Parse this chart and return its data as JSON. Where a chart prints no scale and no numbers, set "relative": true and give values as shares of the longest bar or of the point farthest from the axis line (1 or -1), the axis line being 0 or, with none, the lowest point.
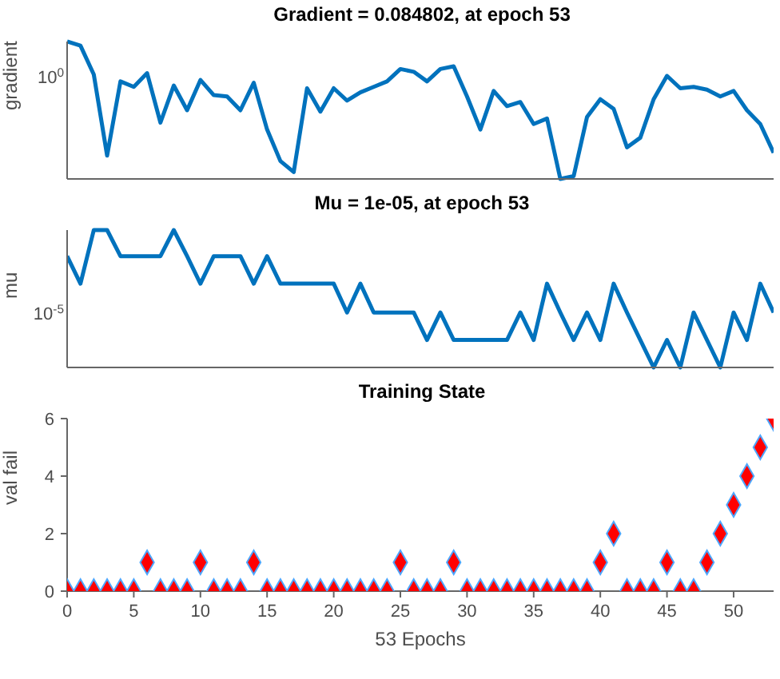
{
  "chart_data": [
    {
      "type": "line",
      "title": "Gradient = 0.084802, at epoch 53",
      "ylabel": "gradient",
      "x": [
        0,
        1,
        2,
        3,
        4,
        5,
        6,
        7,
        8,
        9,
        10,
        11,
        12,
        13,
        14,
        15,
        16,
        17,
        18,
        19,
        20,
        21,
        22,
        23,
        24,
        25,
        26,
        27,
        28,
        29,
        30,
        31,
        32,
        33,
        34,
        35,
        36,
        37,
        38,
        39,
        40,
        41,
        42,
        43,
        44,
        45,
        46,
        47,
        48,
        49,
        50,
        51,
        52,
        53
      ],
      "series": [
        {
          "color": "#0072bd",
          "values": [
            1,
            0.97,
            0.76,
            0.17,
            0.71,
            0.67,
            0.77,
            0.41,
            0.68,
            0.5,
            0.72,
            0.61,
            0.6,
            0.5,
            0.7,
            0.36,
            0.13,
            0.05,
            0.66,
            0.49,
            0.66,
            0.57,
            0.63,
            0.67,
            0.71,
            0.8,
            0.78,
            0.71,
            0.8,
            0.82,
            0.6,
            0.36,
            0.64,
            0.53,
            0.56,
            0.4,
            0.44,
            0,
            0.02,
            0.45,
            0.58,
            0.51,
            0.23,
            0.3,
            0.58,
            0.75,
            0.66,
            0.67,
            0.65,
            0.6,
            0.64,
            0.5,
            0.4,
            0.19
          ]
        }
      ],
      "relative": true,
      "annotations": [
        "10$^{0}$"
      ],
      "xlim": [
        0,
        53
      ],
      "xticks": [
        0,
        5,
        10,
        15,
        20,
        25,
        30,
        35,
        40,
        45,
        50
      ],
      "tick_labels": false
    },
    {
      "type": "line",
      "title": "Mu = 1e-05, at epoch 53",
      "ylabel": "mu",
      "x": [
        0,
        1,
        2,
        3,
        4,
        5,
        6,
        7,
        8,
        9,
        10,
        11,
        12,
        13,
        14,
        15,
        16,
        17,
        18,
        19,
        20,
        21,
        22,
        23,
        24,
        25,
        26,
        27,
        28,
        29,
        30,
        31,
        32,
        33,
        34,
        35,
        36,
        37,
        38,
        39,
        40,
        41,
        42,
        43,
        44,
        45,
        46,
        47,
        48,
        49,
        50,
        51,
        52,
        53
      ],
      "series": [
        {
          "color": "#0072bd",
          "values": [
            0.81,
            0.61,
            1,
            1,
            0.81,
            0.81,
            0.81,
            0.81,
            1,
            0.81,
            0.61,
            0.81,
            0.81,
            0.81,
            0.61,
            0.81,
            0.61,
            0.61,
            0.61,
            0.61,
            0.61,
            0.4,
            0.61,
            0.4,
            0.4,
            0.4,
            0.4,
            0.2,
            0.4,
            0.2,
            0.2,
            0.2,
            0.2,
            0.2,
            0.4,
            0.2,
            0.61,
            0.4,
            0.2,
            0.4,
            0.2,
            0.61,
            0.4,
            0.2,
            0,
            0.2,
            0,
            0.4,
            0.2,
            0,
            0.4,
            0.2,
            0.61,
            0.4
          ]
        }
      ],
      "relative": true,
      "annotations": [
        "10$^{-5}$"
      ],
      "xlim": [
        0,
        53
      ],
      "xticks": [
        0,
        5,
        10,
        15,
        20,
        25,
        30,
        35,
        40,
        45,
        50
      ],
      "tick_labels": false
    },
    {
      "type": "scatter",
      "title": "Training State",
      "xlabel": "53 Epochs",
      "ylabel": "val fail",
      "marker": "diamond",
      "x": [
        0,
        1,
        2,
        3,
        4,
        5,
        6,
        7,
        8,
        9,
        10,
        11,
        12,
        13,
        14,
        15,
        16,
        17,
        18,
        19,
        20,
        21,
        22,
        23,
        24,
        25,
        26,
        27,
        28,
        29,
        30,
        31,
        32,
        33,
        34,
        35,
        36,
        37,
        38,
        39,
        40,
        41,
        42,
        43,
        44,
        45,
        46,
        47,
        48,
        49,
        50,
        51,
        52,
        53
      ],
      "series": [
        {
          "color": "#ff0000",
          "values": [
            0,
            0,
            0,
            0,
            0,
            0,
            1,
            0,
            0,
            0,
            1,
            0,
            0,
            0,
            1,
            0,
            0,
            0,
            0,
            0,
            0,
            0,
            0,
            0,
            0,
            1,
            0,
            0,
            0,
            1,
            0,
            0,
            0,
            0,
            0,
            0,
            0,
            0,
            0,
            0,
            1,
            2,
            0,
            0,
            0,
            1,
            0,
            0,
            1,
            2,
            3,
            4,
            5,
            6
          ]
        }
      ],
      "xlim": [
        0,
        53
      ],
      "xticks": [
        0,
        5,
        10,
        15,
        20,
        25,
        30,
        35,
        40,
        45,
        50
      ],
      "ylim": [
        0,
        6
      ],
      "yticks": [
        0,
        2,
        4,
        6
      ]
    }
  ]
}
